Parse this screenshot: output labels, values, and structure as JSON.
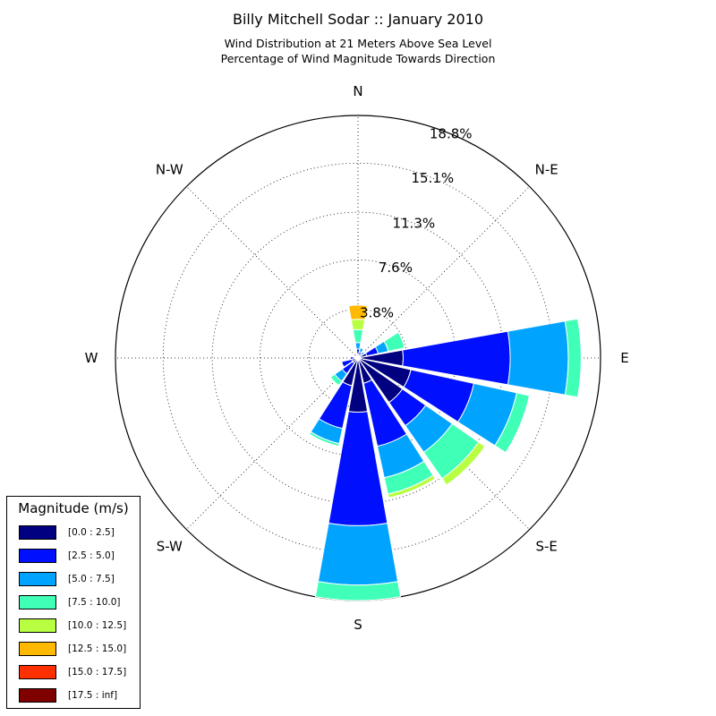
{
  "chart_data": {
    "type": "windrose",
    "title": "Billy Mitchell Sodar :: January 2010",
    "subtitle_line1": "Wind Distribution at 21 Meters Above Sea Level",
    "subtitle_line2": "Percentage of Wind Magnitude Towards Direction",
    "direction_labels": [
      "N",
      "N-E",
      "E",
      "S-E",
      "S",
      "S-W",
      "W",
      "N-W"
    ],
    "radial_tick_labels": [
      "3.8%",
      "7.6%",
      "11.3%",
      "15.1%",
      "18.8%"
    ],
    "radial_ticks": [
      3.8,
      7.6,
      11.3,
      15.1,
      18.8
    ],
    "rmax": 18.8,
    "grid": true,
    "legend_title": "Magnitude (m/s)",
    "legend_position": "lower-left",
    "bins": [
      {
        "label": "[0.0 : 2.5]",
        "color": "#000080"
      },
      {
        "label": "[2.5 : 5.0]",
        "color": "#0010ff"
      },
      {
        "label": "[5.0 : 7.5]",
        "color": "#00a4ff"
      },
      {
        "label": "[7.5 : 10.0]",
        "color": "#40ffb7"
      },
      {
        "label": "[10.0 : 12.5]",
        "color": "#b7ff40"
      },
      {
        "label": "[12.5 : 15.0]",
        "color": "#ffb900"
      },
      {
        "label": "[15.0 : 17.5]",
        "color": "#ff3000"
      },
      {
        "label": "[17.5 : inf]",
        "color": "#800000"
      }
    ],
    "sectors": [
      {
        "direction_deg": 0,
        "values": [
          0.3,
          0.4,
          0.5,
          1.0,
          0.8,
          1.1,
          0,
          0
        ]
      },
      {
        "direction_deg": 22.5,
        "values": [
          0.2,
          0.3,
          0.3,
          0,
          0,
          0,
          0,
          0
        ]
      },
      {
        "direction_deg": 45,
        "values": [
          0.2,
          0.2,
          0.2,
          0.1,
          0,
          0,
          0,
          0
        ]
      },
      {
        "direction_deg": 67.5,
        "values": [
          0.7,
          0.9,
          0.8,
          1.3,
          0,
          0,
          0,
          0
        ]
      },
      {
        "direction_deg": 90,
        "values": [
          3.5,
          8.3,
          4.5,
          1.0,
          0,
          0,
          0,
          0
        ]
      },
      {
        "direction_deg": 112.5,
        "values": [
          4.2,
          5.0,
          3.4,
          1.0,
          0,
          0,
          0,
          0
        ]
      },
      {
        "direction_deg": 135,
        "values": [
          4.2,
          2.2,
          2.5,
          2.5,
          0.6,
          0,
          0,
          0
        ]
      },
      {
        "direction_deg": 157.5,
        "values": [
          2.0,
          5.0,
          2.5,
          1.3,
          0.3,
          0,
          0,
          0
        ]
      },
      {
        "direction_deg": 180,
        "values": [
          4.2,
          8.8,
          4.6,
          1.2,
          0,
          0,
          0,
          0
        ]
      },
      {
        "direction_deg": 202.5,
        "values": [
          2.2,
          3.4,
          1.2,
          0.2,
          0,
          0,
          0,
          0
        ]
      },
      {
        "direction_deg": 225,
        "values": [
          0.5,
          1.0,
          0.7,
          0.4,
          0,
          0,
          0,
          0
        ]
      },
      {
        "direction_deg": 247.5,
        "values": [
          0.5,
          0.8,
          0,
          0,
          0,
          0,
          0,
          0
        ]
      },
      {
        "direction_deg": 270,
        "values": [
          0.3,
          0.3,
          0,
          0,
          0,
          0,
          0,
          0
        ]
      },
      {
        "direction_deg": 292.5,
        "values": [
          0.1,
          0,
          0,
          0,
          0,
          0,
          0,
          0
        ]
      },
      {
        "direction_deg": 315,
        "values": [
          0,
          0,
          0,
          0,
          0,
          0,
          0,
          0
        ]
      },
      {
        "direction_deg": 337.5,
        "values": [
          0.2,
          0,
          0,
          0,
          0,
          0,
          0,
          0
        ]
      }
    ]
  }
}
